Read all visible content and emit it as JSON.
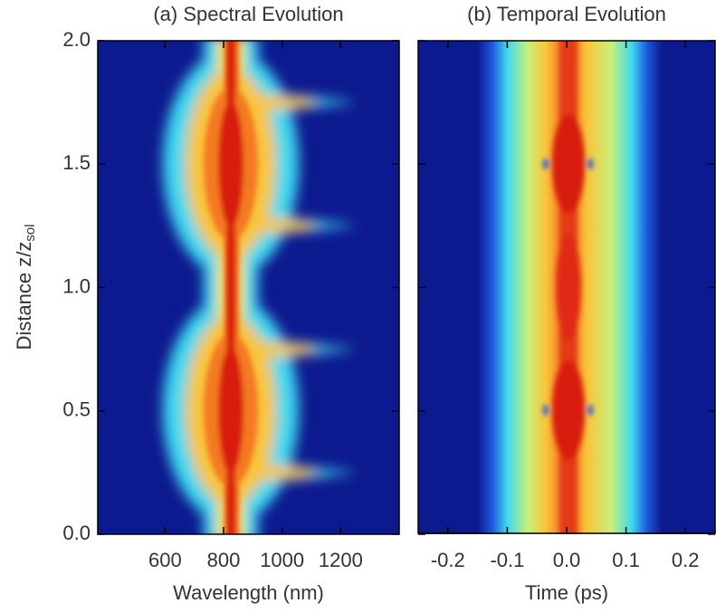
{
  "chart_data": [
    {
      "type": "heatmap",
      "title": "(a) Spectral Evolution",
      "xlabel": "Wavelength (nm)",
      "ylabel": {
        "text": "Distance z/z",
        "sub": "sol"
      },
      "xlim": [
        370,
        1400
      ],
      "xticks": [
        600,
        800,
        1000,
        1200
      ],
      "ylim": [
        0,
        2
      ],
      "yticks": [
        {
          "value": 0,
          "label": "0.0"
        },
        {
          "value": 0.5,
          "label": "0.5"
        },
        {
          "value": 1,
          "label": "1.0"
        },
        {
          "value": 1.5,
          "label": "1.5"
        },
        {
          "value": 2,
          "label": "2.0"
        }
      ]
    },
    {
      "type": "heatmap",
      "title": "(b) Temporal Evolution",
      "xlabel": "Time (ps)",
      "xlim": [
        -0.25,
        0.25
      ],
      "xticks": [
        -0.2,
        -0.1,
        {
          "value": 0,
          "label": "0.0"
        },
        0.1,
        0.2
      ],
      "ylim": [
        0,
        2
      ],
      "yticks": [
        0,
        0.5,
        1,
        1.5,
        2
      ]
    }
  ]
}
